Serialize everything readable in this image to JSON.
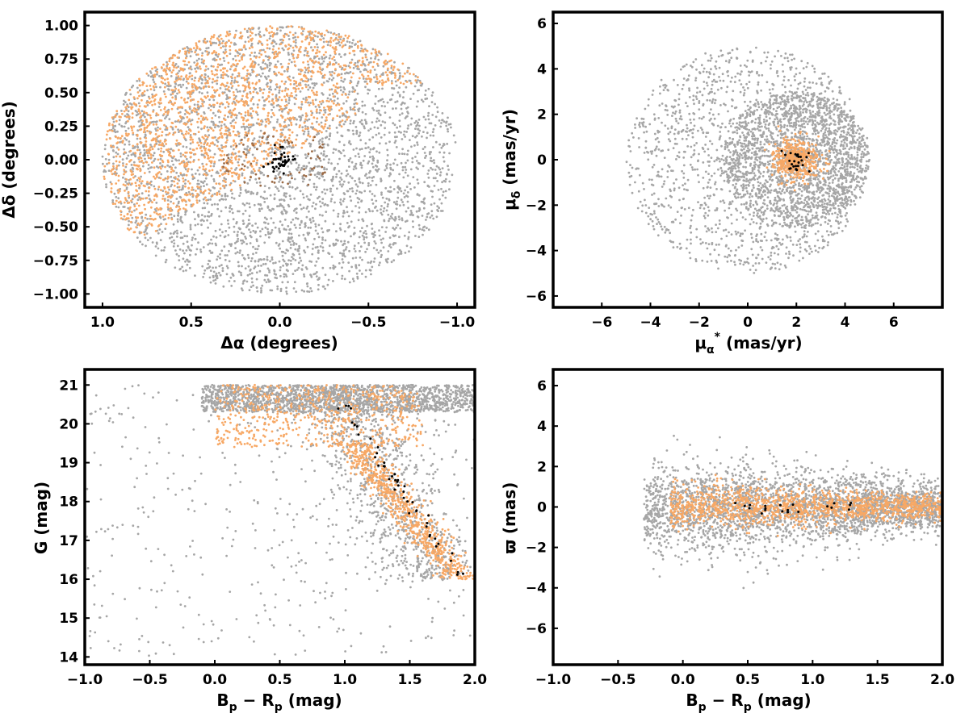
{
  "figure": {
    "background": "#ffffff"
  },
  "colors": {
    "field": "#a6a6a6",
    "members": "#f7a865",
    "members_dark": "#9b6a45",
    "core": "#000000",
    "frame": "#000000"
  },
  "chart_data": [
    {
      "type": "scatter",
      "panel": "top-left",
      "xlabel": "Δα (degrees)",
      "ylabel": "Δδ (degrees)",
      "xlim": [
        1.1,
        -1.1
      ],
      "ylim": [
        -1.1,
        1.1
      ],
      "xticks": [
        1.0,
        0.5,
        0.0,
        -0.5,
        -1.0
      ],
      "xtick_labels": [
        "1.0",
        "0.5",
        "0.0",
        "−0.5",
        "−1.0"
      ],
      "yticks": [
        1.0,
        0.75,
        0.5,
        0.25,
        0.0,
        -0.25,
        -0.5,
        -0.75,
        -1.0
      ],
      "ytick_labels": [
        "1.00",
        "0.75",
        "0.50",
        "0.25",
        "0.00",
        "−0.25",
        "−0.50",
        "−0.75",
        "−1.00"
      ],
      "series": [
        {
          "color": "#a6a6a6",
          "description_points": [
            [
              0.0,
              0.0
            ]
          ],
          "distribution": {
            "shape": "disk",
            "center": [
              0.0,
              0.0
            ],
            "radius": 1.0,
            "count": 3200
          }
        },
        {
          "color": "#f7a865",
          "distribution": {
            "shape": "half-disk-upper-left",
            "center": [
              0.0,
              0.0
            ],
            "radius": 1.0,
            "count": 1700
          }
        },
        {
          "color": "#9b6a45",
          "distribution": {
            "shape": "ring-fragments",
            "center": [
              0.0,
              0.0
            ],
            "radius": 0.2,
            "count": 70
          }
        },
        {
          "color": "#000000",
          "distribution": {
            "shape": "cluster",
            "center": [
              0.0,
              0.0
            ],
            "radius": 0.1,
            "count": 40
          }
        }
      ]
    },
    {
      "type": "scatter",
      "panel": "top-right",
      "xlabel": "μα* (mas/yr)",
      "ylabel": "μδ (mas/yr)",
      "xlim": [
        -8,
        8
      ],
      "ylim": [
        -6.5,
        6.5
      ],
      "xticks": [
        -6,
        -4,
        -2,
        0,
        2,
        4,
        6
      ],
      "xtick_labels": [
        "−6",
        "−4",
        "−2",
        "0",
        "2",
        "4",
        "6"
      ],
      "yticks": [
        6,
        4,
        2,
        0,
        -2,
        -4,
        -6
      ],
      "ytick_labels": [
        "6",
        "4",
        "2",
        "0",
        "−2",
        "−4",
        "−6"
      ],
      "series": [
        {
          "color": "#a6a6a6",
          "distribution": {
            "shape": "disk",
            "center": [
              0.0,
              0.0
            ],
            "radius": 5.0,
            "dense_center": [
              2.0,
              0.0
            ],
            "count": 3200
          }
        },
        {
          "color": "#f7a865",
          "distribution": {
            "shape": "cluster",
            "center": [
              2.0,
              0.0
            ],
            "radius": 1.0,
            "count": 500
          }
        },
        {
          "color": "#000000",
          "distribution": {
            "shape": "cluster",
            "center": [
              2.0,
              0.0
            ],
            "radius": 0.5,
            "count": 25
          }
        }
      ]
    },
    {
      "type": "scatter",
      "panel": "bottom-left",
      "xlabel": "Bp − Rp (mag)",
      "ylabel": "G (mag)",
      "xlim": [
        -1.0,
        2.0
      ],
      "ylim": [
        13.8,
        21.4
      ],
      "xticks": [
        -1.0,
        -0.5,
        0.0,
        0.5,
        1.0,
        1.5,
        2.0
      ],
      "xtick_labels": [
        "−1.0",
        "−0.5",
        "0.0",
        "0.5",
        "1.0",
        "1.5",
        "2.0"
      ],
      "yticks": [
        21,
        20,
        19,
        18,
        17,
        16,
        15,
        14
      ],
      "ytick_labels": [
        "21",
        "20",
        "19",
        "18",
        "17",
        "16",
        "15",
        "14"
      ],
      "series": [
        {
          "color": "#a6a6a6",
          "distribution": {
            "shape": "cmd-field",
            "count": 3000
          }
        },
        {
          "color": "#f7a865",
          "distribution": {
            "shape": "cmd-sequence",
            "count": 1300
          }
        },
        {
          "color": "#000000",
          "distribution": {
            "shape": "cmd-sequence-core",
            "count": 45
          }
        }
      ]
    },
    {
      "type": "scatter",
      "panel": "bottom-right",
      "xlabel": "Bp − Rp (mag)",
      "ylabel": "ϖ (mas)",
      "xlim": [
        -1.0,
        2.0
      ],
      "ylim": [
        -7.8,
        6.8
      ],
      "xticks": [
        -1.0,
        -0.5,
        0.0,
        0.5,
        1.0,
        1.5,
        2.0
      ],
      "xtick_labels": [
        "−1.0",
        "−0.5",
        "0.0",
        "0.5",
        "1.0",
        "1.5",
        "2.0"
      ],
      "yticks": [
        6,
        4,
        2,
        0,
        -2,
        -4,
        -6
      ],
      "ytick_labels": [
        "6",
        "4",
        "2",
        "0",
        "−2",
        "−4",
        "−6"
      ],
      "series": [
        {
          "color": "#a6a6a6",
          "distribution": {
            "shape": "parallax-field",
            "count": 3000
          }
        },
        {
          "color": "#f7a865",
          "distribution": {
            "shape": "parallax-members",
            "count": 1300
          }
        },
        {
          "color": "#000000",
          "distribution": {
            "shape": "parallax-core",
            "count": 20
          }
        }
      ]
    }
  ]
}
